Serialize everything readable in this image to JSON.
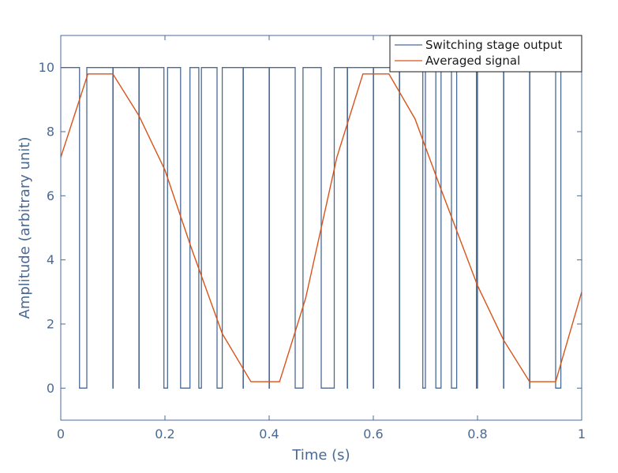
{
  "chart_data": {
    "type": "line",
    "xlabel": "Time (s)",
    "ylabel": "Amplitude (arbitrary unit)",
    "xlim": [
      0,
      1
    ],
    "ylim": [
      -1,
      11
    ],
    "xticks": [
      0,
      0.2,
      0.4,
      0.6,
      0.8,
      1
    ],
    "xtick_labels": [
      "0",
      "0.2",
      "0.4",
      "0.6",
      "0.8",
      "1"
    ],
    "yticks": [
      0,
      2,
      4,
      6,
      8,
      10
    ],
    "ytick_labels": [
      "0",
      "2",
      "4",
      "6",
      "8",
      "10"
    ],
    "grid": false,
    "legend_position": "top-right",
    "series": [
      {
        "name": "Switching stage output",
        "color": "#4a6a94",
        "step": true,
        "x": [
          0,
          0.036,
          0.05,
          0.1,
          0.1005,
          0.15,
          0.1505,
          0.198,
          0.205,
          0.23,
          0.248,
          0.265,
          0.27,
          0.3,
          0.31,
          0.35,
          0.3505,
          0.4,
          0.4005,
          0.45,
          0.465,
          0.5,
          0.525,
          0.55,
          0.5505,
          0.6,
          0.6005,
          0.65,
          0.6505,
          0.695,
          0.7,
          0.72,
          0.73,
          0.75,
          0.76,
          0.798,
          0.8,
          0.85,
          0.8505,
          0.9,
          0.9005,
          0.95,
          0.96,
          1
        ],
        "y": [
          10,
          0,
          10,
          0,
          10,
          0,
          10,
          0,
          10,
          0,
          10,
          0,
          10,
          0,
          10,
          0,
          10,
          0,
          10,
          0,
          10,
          0,
          10,
          0,
          10,
          0,
          10,
          0,
          10,
          0,
          10,
          0,
          10,
          0,
          10,
          0,
          10,
          0,
          10,
          0,
          10,
          0,
          10,
          10
        ]
      },
      {
        "name": "Averaged signal",
        "color": "#d95319",
        "step": false,
        "x": [
          0,
          0.052,
          0.1,
          0.15,
          0.2,
          0.25,
          0.31,
          0.365,
          0.42,
          0.47,
          0.53,
          0.58,
          0.63,
          0.68,
          0.73,
          0.8,
          0.85,
          0.9,
          0.95,
          1
        ],
        "y": [
          7.2,
          9.8,
          9.8,
          8.5,
          6.8,
          4.4,
          1.7,
          0.2,
          0.2,
          2.8,
          7.2,
          9.8,
          9.8,
          8.4,
          6.2,
          3.2,
          1.5,
          0.2,
          0.2,
          3.0
        ]
      }
    ]
  }
}
